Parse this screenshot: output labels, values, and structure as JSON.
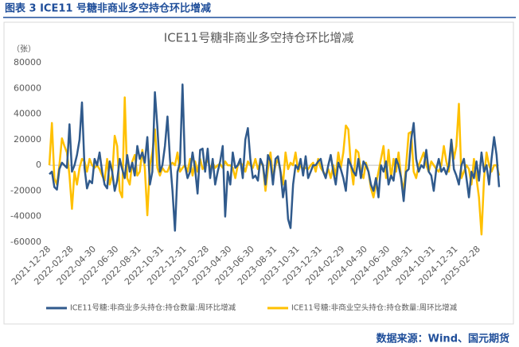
{
  "header": {
    "title": "图表 3 ICE11 号糖非商业多空持仓环比增减"
  },
  "chart_data": {
    "type": "line",
    "title": "ICE11号糖非商业多空持仓环比增减",
    "y_label": "（张）",
    "categories": [
      "2021-12-28",
      null,
      null,
      null,
      null,
      null,
      null,
      null,
      null,
      "2022-02-28",
      null,
      null,
      null,
      null,
      null,
      null,
      null,
      null,
      "2022-04-30",
      null,
      null,
      null,
      null,
      null,
      null,
      null,
      null,
      "2022-06-30",
      null,
      null,
      null,
      null,
      null,
      null,
      null,
      null,
      "2022-08-31",
      null,
      null,
      null,
      null,
      null,
      null,
      null,
      null,
      "2022-10-31",
      null,
      null,
      null,
      null,
      null,
      null,
      null,
      null,
      "2022-12-31",
      null,
      null,
      null,
      null,
      null,
      null,
      null,
      null,
      "2023-02-28",
      null,
      null,
      null,
      null,
      null,
      null,
      null,
      null,
      "2023-04-30",
      null,
      null,
      null,
      null,
      null,
      null,
      null,
      null,
      "2023-06-30",
      null,
      null,
      null,
      null,
      null,
      null,
      null,
      null,
      "2023-08-31",
      null,
      null,
      null,
      null,
      null,
      null,
      null,
      null,
      "2023-10-31",
      null,
      null,
      null,
      null,
      null,
      null,
      null,
      null,
      "2023-12-31",
      null,
      null,
      null,
      null,
      null,
      null,
      null,
      null,
      "2024-02-29",
      null,
      null,
      null,
      null,
      null,
      null,
      null,
      null,
      "2024-04-30",
      null,
      null,
      null,
      null,
      null,
      null,
      null,
      null,
      "2024-06-30",
      null,
      null,
      null,
      null,
      null,
      null,
      null,
      null,
      "2024-08-31",
      null,
      null,
      null,
      null,
      null,
      null,
      null,
      null,
      "2024-10-31",
      null,
      null,
      null,
      null,
      null,
      null,
      null,
      null,
      "2024-12-31",
      null,
      null,
      null,
      null,
      null,
      null,
      null,
      null,
      "2025-02-28",
      null,
      null,
      null,
      null,
      null,
      null,
      null,
      null
    ],
    "series": [
      {
        "name": "ICE11号糖:非商业多头持仓:持仓数量:周环比增减",
        "color": "#305a8c",
        "values": [
          -7000,
          -5000,
          -17000,
          -19000,
          -3000,
          2000,
          0,
          -2000,
          32000,
          -5000,
          0,
          8000,
          20000,
          49000,
          -2000,
          -18000,
          -12000,
          -14000,
          5000,
          0,
          10000,
          -5000,
          -15000,
          -18000,
          3000,
          -5000,
          -20000,
          -12000,
          5000,
          -3000,
          -10000,
          8000,
          -5000,
          2000,
          -8000,
          15000,
          5000,
          10000,
          2000,
          22000,
          -15000,
          -5000,
          57000,
          30000,
          -5000,
          0,
          15000,
          38000,
          5000,
          -20000,
          -51000,
          -5000,
          2000,
          63000,
          0,
          -10000,
          -5000,
          10000,
          -3000,
          -22000,
          12000,
          13000,
          -5000,
          13000,
          -10000,
          5000,
          -15000,
          -5000,
          3000,
          15000,
          -40000,
          -5000,
          -15000,
          10000,
          -2000,
          0,
          5000,
          -10000,
          20000,
          29000,
          5000,
          -10000,
          -8000,
          -12000,
          5000,
          0,
          -15000,
          8000,
          3000,
          -15000,
          5000,
          7000,
          -5000,
          -25000,
          -12000,
          -42000,
          -49000,
          -15000,
          0,
          -3000,
          5000,
          -8000,
          7000,
          -10000,
          -5000,
          0,
          0,
          3000,
          5000,
          -5000,
          -10000,
          0,
          8000,
          -5000,
          -15000,
          2000,
          -3000,
          -10000,
          -20000,
          5000,
          0,
          -5000,
          -8000,
          5000,
          -10000,
          3000,
          0,
          -5000,
          -15000,
          -20000,
          -10000,
          -25000,
          0,
          -5000,
          3000,
          -15000,
          -8000,
          -12000,
          5000,
          0,
          -10000,
          -28000,
          -5000,
          -3000,
          20000,
          33000,
          5000,
          -5000,
          0,
          -2000,
          12000,
          -5000,
          -8000,
          -20000,
          -3000,
          5000,
          -5000,
          -2000,
          -7000,
          0,
          20000,
          -3000,
          -8000,
          -15000,
          0,
          5000,
          -10000,
          -25000,
          -5000,
          -10000,
          3000,
          -12000,
          10000,
          -5000,
          0,
          -15000,
          5000,
          22000,
          8000,
          -17000
        ]
      },
      {
        "name": "ICE11号糖:非商业空头持仓:持仓数量:周环比增减",
        "color": "#ffc000",
        "values": [
          0,
          33000,
          -10000,
          -15000,
          0,
          21000,
          15000,
          10000,
          -8000,
          -34000,
          -5000,
          -15000,
          -2000,
          5000,
          3000,
          -5000,
          5000,
          0,
          -2000,
          0,
          -3000,
          -8000,
          -12000,
          5000,
          -15000,
          -8000,
          23000,
          15000,
          -20000,
          -25000,
          53000,
          -10000,
          -15000,
          3000,
          8000,
          -8000,
          -5000,
          12000,
          -2000,
          -39000,
          0,
          10000,
          28000,
          -2000,
          -8000,
          -2000,
          -5000,
          -5000,
          0,
          2000,
          0,
          10000,
          -5000,
          -2000,
          0,
          -5000,
          5000,
          -8000,
          3000,
          -5000,
          5000,
          -3000,
          0,
          5000,
          -3000,
          2000,
          -2000,
          0,
          1000,
          -2000,
          3000,
          0,
          0,
          -2000,
          -10000,
          0,
          2000,
          0,
          -5000,
          3000,
          0,
          -2000,
          5000,
          -3000,
          2000,
          0,
          -20000,
          -3000,
          10000,
          -10000,
          0,
          5000,
          -5000,
          -15000,
          10000,
          -3000,
          2000,
          0,
          10000,
          -5000,
          0,
          -3000,
          -2000,
          -3000,
          0,
          2000,
          -5000,
          5000,
          -2000,
          -5000,
          -8000,
          -3000,
          -10000,
          0,
          -8000,
          10000,
          -2000,
          10000,
          31000,
          28000,
          0,
          -15000,
          12000,
          10000,
          -5000,
          -10000,
          2000,
          -5000,
          -18000,
          -25000,
          -15000,
          -5000,
          5000,
          15000,
          -10000,
          12000,
          -10000,
          5000,
          -5000,
          10000,
          -10000,
          -20000,
          0,
          25000,
          26000,
          -5000,
          -10000,
          0,
          5000,
          10000,
          0,
          -5000,
          3000,
          0,
          -3000,
          -5000,
          0,
          15000,
          3000,
          -5000,
          20000,
          5000,
          15000,
          48000,
          -10000,
          -5000,
          0,
          -3000,
          -15000,
          5000,
          -10000,
          -25000,
          -54000,
          -10000,
          10000,
          0,
          -5000,
          0,
          0,
          -8000
        ]
      }
    ],
    "ylim": [
      -60000,
      80000
    ],
    "yticks": [
      -60000,
      -40000,
      -20000,
      0,
      20000,
      40000,
      60000,
      80000
    ],
    "grid": false,
    "legend": "bottom"
  },
  "footer": {
    "source": "数据来源：Wind、国元期货"
  }
}
